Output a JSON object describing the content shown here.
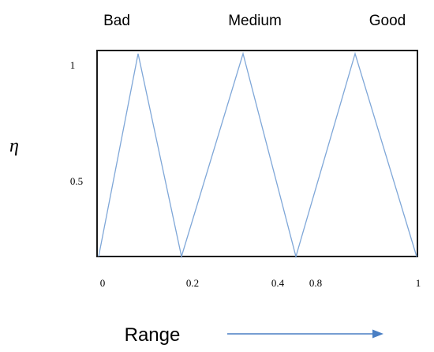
{
  "category_labels": [
    "Bad",
    "Medium",
    "Good"
  ],
  "y_axis": {
    "label": "η",
    "ticks": [
      "1",
      "0.5"
    ]
  },
  "x_axis": {
    "label": "Range",
    "ticks": [
      "0",
      "0.2",
      "0.4",
      "0.8",
      "1"
    ]
  }
}
